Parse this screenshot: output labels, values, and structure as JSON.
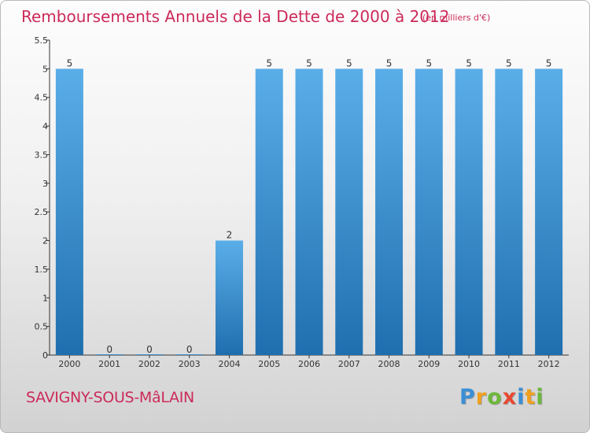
{
  "title": "Remboursements Annuels de la Dette de 2000 à 2012",
  "subtitle": "(en milliers d'€)",
  "commune": "SAVIGNY-SOUS-MâLAIN",
  "logo": {
    "letters": [
      {
        "char": "P",
        "color": "#3a8fd6"
      },
      {
        "char": "r",
        "color": "#f0a01e"
      },
      {
        "char": "o",
        "color": "#6cb83a"
      },
      {
        "char": "x",
        "color": "#e8472f"
      },
      {
        "char": "i",
        "color": "#3a8fd6"
      },
      {
        "char": "t",
        "color": "#f0a01e"
      },
      {
        "char": "i",
        "color": "#6cb83a"
      }
    ]
  },
  "colors": {
    "bar_top": "#5aaee8",
    "bar_bottom": "#1f6fae",
    "title": "#cc2a5a"
  },
  "chart_data": {
    "type": "bar",
    "categories": [
      "2000",
      "2001",
      "2002",
      "2003",
      "2004",
      "2005",
      "2006",
      "2007",
      "2008",
      "2009",
      "2010",
      "2011",
      "2012"
    ],
    "values": [
      5,
      0,
      0,
      0,
      2,
      5,
      5,
      5,
      5,
      5,
      5,
      5,
      5
    ],
    "data_labels": [
      "5",
      "0",
      "0",
      "0",
      "2",
      "5",
      "5",
      "5",
      "5",
      "5",
      "5",
      "5",
      "5"
    ],
    "yticks": [
      "0",
      "0.5",
      "1",
      "1.5",
      "2",
      "2.5",
      "3",
      "3.5",
      "4",
      "4.5",
      "5",
      "5.5"
    ],
    "ylim": [
      0,
      5.5
    ],
    "xlabel": "",
    "ylabel": "",
    "grid": false,
    "legend": "none"
  }
}
